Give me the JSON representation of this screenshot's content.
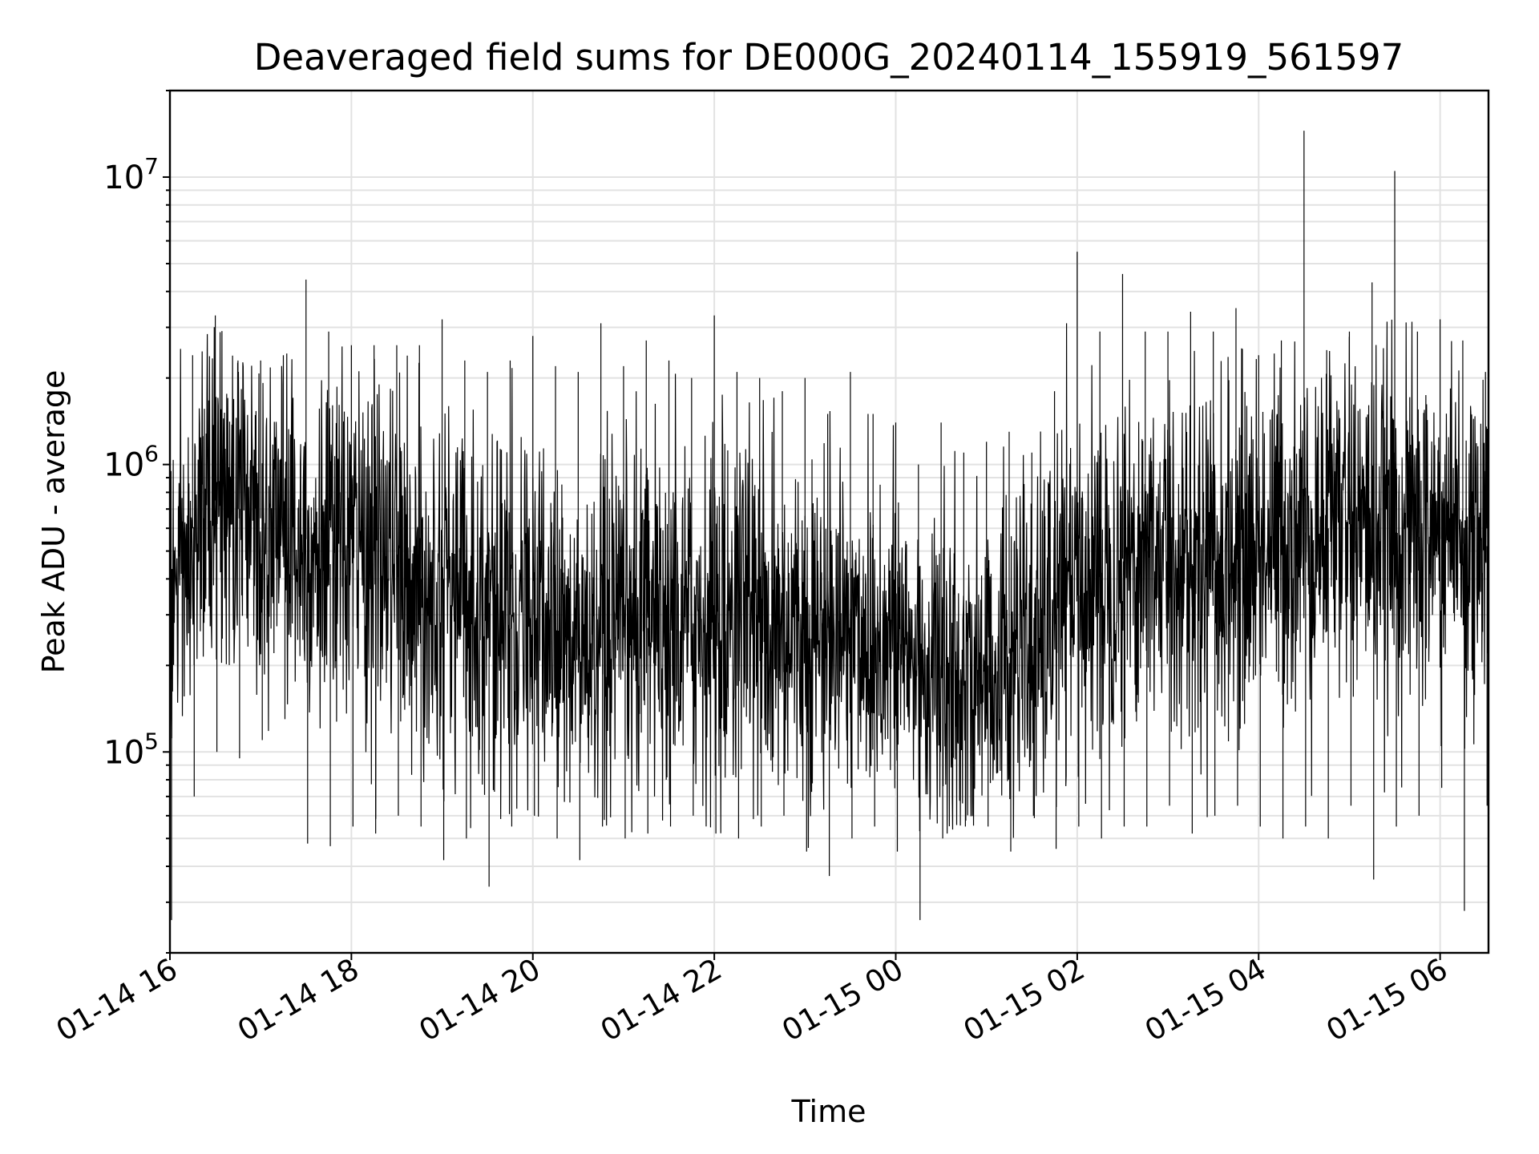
{
  "chart_data": {
    "type": "line",
    "title": "Deaveraged field sums for DE000G_20240114_155919_561597",
    "xlabel": "Time",
    "ylabel": "Peak ADU - average",
    "yscale": "log",
    "ylim": [
      20000,
      20000000
    ],
    "xlim": [
      "01-14 16:00",
      "01-15 06:32"
    ],
    "grid": true,
    "legend": "none",
    "line_color": "#000000",
    "x_ticks": [
      "01-14 16",
      "01-14 18",
      "01-14 20",
      "01-14 22",
      "01-15 00",
      "01-15 02",
      "01-15 04",
      "01-15 06"
    ],
    "y_ticks": [
      {
        "value": 100000,
        "base": "10",
        "exp": "5"
      },
      {
        "value": 1000000,
        "base": "10",
        "exp": "6"
      },
      {
        "value": 10000000,
        "base": "10",
        "exp": "7"
      }
    ],
    "series": [
      {
        "x": [
          "01-14 16:00",
          "01-14 16:15",
          "01-14 16:30",
          "01-14 16:45",
          "01-14 17:00",
          "01-14 17:15",
          "01-14 17:30",
          "01-14 17:45",
          "01-14 18:00",
          "01-14 18:15",
          "01-14 18:30",
          "01-14 18:45",
          "01-14 19:00",
          "01-14 19:15",
          "01-14 19:30",
          "01-14 19:45",
          "01-14 20:00",
          "01-14 20:15",
          "01-14 20:30",
          "01-14 20:45",
          "01-14 21:00",
          "01-14 21:15",
          "01-14 21:30",
          "01-14 21:45",
          "01-14 22:00",
          "01-14 22:15",
          "01-14 22:30",
          "01-14 22:45",
          "01-14 23:00",
          "01-14 23:15",
          "01-14 23:30",
          "01-14 23:45",
          "01-15 00:00",
          "01-15 00:15",
          "01-15 00:30",
          "01-15 00:45",
          "01-15 01:00",
          "01-15 01:15",
          "01-15 01:30",
          "01-15 01:45",
          "01-15 02:00",
          "01-15 02:15",
          "01-15 02:30",
          "01-15 02:45",
          "01-15 03:00",
          "01-15 03:15",
          "01-15 03:30",
          "01-15 03:45",
          "01-15 04:00",
          "01-15 04:15",
          "01-15 04:30",
          "01-15 04:45",
          "01-15 05:00",
          "01-15 05:15",
          "01-15 05:30",
          "01-15 05:45",
          "01-15 06:00",
          "01-15 06:15",
          "01-15 06:30"
        ],
        "values": [
          300000,
          600000,
          750000,
          700000,
          650000,
          600000,
          550000,
          450000,
          550000,
          500000,
          450000,
          400000,
          400000,
          350000,
          330000,
          300000,
          300000,
          250000,
          230000,
          230000,
          250000,
          270000,
          260000,
          280000,
          300000,
          330000,
          300000,
          280000,
          270000,
          270000,
          270000,
          250000,
          240000,
          200000,
          180000,
          170000,
          200000,
          220000,
          200000,
          300000,
          350000,
          420000,
          470000,
          500000,
          480000,
          450000,
          430000,
          470000,
          520000,
          550000,
          580000,
          600000,
          620000,
          600000,
          580000,
          560000,
          550000,
          530000,
          520000
        ],
        "peaks_max": [
          2900000,
          2400000,
          3300000,
          2300000,
          2300000,
          2400000,
          4400000,
          2900000,
          2600000,
          2600000,
          2600000,
          2600000,
          3200000,
          2300000,
          2100000,
          2300000,
          2800000,
          2200000,
          2100000,
          3100000,
          2200000,
          2700000,
          2300000,
          2000000,
          3300000,
          2100000,
          2000000,
          1800000,
          2000000,
          1500000,
          2100000,
          1500000,
          1400000,
          1000000,
          1400000,
          1100000,
          1200000,
          1300000,
          1100000,
          1800000,
          5500000,
          2900000,
          4600000,
          2900000,
          2900000,
          3400000,
          2900000,
          3500000,
          2400000,
          2700000,
          14500000,
          2500000,
          2900000,
          4300000,
          10500000,
          2900000,
          3200000,
          2700000,
          2100000
        ],
        "peaks_min": [
          26000,
          70000,
          100000,
          95000,
          110000,
          130000,
          48000,
          47000,
          55000,
          52000,
          60000,
          55000,
          42000,
          50000,
          34000,
          55000,
          60000,
          50000,
          42000,
          55000,
          50000,
          52000,
          55000,
          60000,
          52000,
          50000,
          55000,
          60000,
          45000,
          37000,
          50000,
          55000,
          45000,
          26000,
          50000,
          55000,
          55000,
          45000,
          60000,
          46000,
          55000,
          50000,
          55000,
          55000,
          65000,
          52000,
          60000,
          65000,
          55000,
          50000,
          55000,
          50000,
          65000,
          36000,
          55000,
          60000,
          75000,
          28000,
          65000
        ]
      }
    ]
  }
}
